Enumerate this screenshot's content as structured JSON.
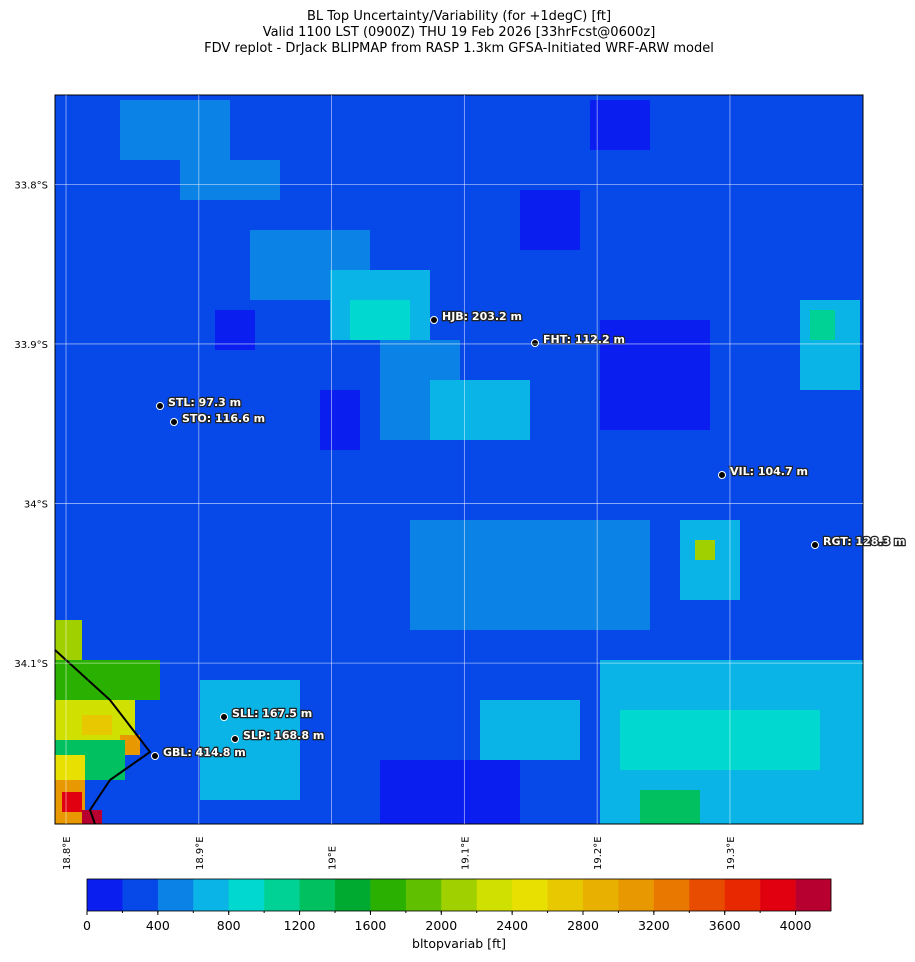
{
  "title": [
    "BL Top Uncertainty/Variability (for +1degC) [ft]",
    "Valid 1100 LST (0900Z) THU 19 Feb 2026 [33hrFcst@0600z]",
    "FDV replot - DrJack BLIPMAP from RASP 1.3km GFSA-Initiated WRF-ARW model"
  ],
  "map": {
    "xlim": [
      18.7917,
      19.4002
    ],
    "ylim": [
      -34.2008,
      -33.744
    ],
    "xticks": [
      {
        "value": 18.8,
        "label": "18.8°E"
      },
      {
        "value": 18.9,
        "label": "18.9°E"
      },
      {
        "value": 19.0,
        "label": "19°E"
      },
      {
        "value": 19.1,
        "label": "19.1°E"
      },
      {
        "value": 19.2,
        "label": "19.2°E"
      },
      {
        "value": 19.3,
        "label": "19.3°E"
      }
    ],
    "yticks": [
      {
        "value": -33.8,
        "label": "33.8°S"
      },
      {
        "value": -33.9,
        "label": "33.9°S"
      },
      {
        "value": -34.0,
        "label": "34°S"
      },
      {
        "value": -34.1,
        "label": "34.1°S"
      }
    ],
    "grid": true,
    "stations": [
      "HJB: 203.2 m",
      "FHT: 112.2 m",
      "STL: 97.3 m",
      "STO: 116.6 m",
      "VIL: 104.7 m",
      "RGT: 128.3 m",
      "SLL: 167.5 m",
      "SLP: 168.8 m",
      "GBL: 414.8 m"
    ]
  },
  "colorbar": {
    "label": "bltopvariab [ft]",
    "lim": [
      0,
      4200
    ],
    "ticks": [
      0,
      400,
      800,
      1200,
      1600,
      2000,
      2400,
      2800,
      3200,
      3600,
      4000
    ],
    "colors": [
      "#0a1ef0",
      "#0648e8",
      "#0a82e6",
      "#0ab4e6",
      "#00d8d0",
      "#00d296",
      "#00c060",
      "#00aa30",
      "#2ab000",
      "#60c000",
      "#a0d000",
      "#d0e000",
      "#e8e000",
      "#e8c800",
      "#e8b000",
      "#e89800",
      "#e87800",
      "#e84c00",
      "#e82800",
      "#e00010",
      "#b80030"
    ]
  }
}
